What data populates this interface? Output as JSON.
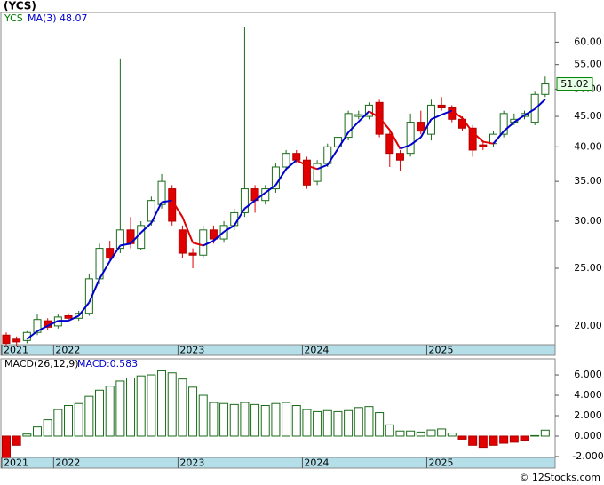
{
  "title": "(YCS)",
  "footer": "© 12Stocks.com",
  "chart_data": [
    {
      "type": "candlestick",
      "log": true,
      "categories": [
        "2021",
        null,
        null,
        null,
        null,
        "2022",
        null,
        null,
        null,
        null,
        null,
        null,
        null,
        null,
        null,
        null,
        null,
        "2023",
        null,
        null,
        null,
        null,
        null,
        null,
        null,
        null,
        null,
        null,
        null,
        "2024",
        null,
        null,
        null,
        null,
        null,
        null,
        null,
        null,
        null,
        null,
        null,
        "2025",
        null,
        null,
        null,
        null,
        null,
        null,
        null,
        null,
        null,
        null,
        null
      ],
      "series": [
        {
          "name": "YCS",
          "color": "#008000",
          "up_color": "#1a6b1a",
          "down_color": "#e00000",
          "open": [
            19.3,
            19.0,
            18.9,
            19.5,
            20.4,
            20.0,
            20.8,
            20.6,
            21.0,
            24.0,
            27.0,
            27.0,
            29.0,
            27.0,
            30.0,
            32.0,
            34.0,
            29.0,
            26.5,
            26.3,
            29.0,
            28.0,
            29.5,
            31.0,
            34.0,
            32.5,
            34.0,
            37.0,
            39.0,
            38.0,
            35.0,
            37.5,
            40.0,
            41.5,
            45.0,
            45.0,
            47.5,
            42.0,
            39.0,
            39.0,
            44.0,
            42.0,
            47.0,
            46.5,
            44.5,
            43.0,
            40.3,
            40.5,
            42.0,
            44.0,
            45.0,
            44.0,
            49.0
          ],
          "high": [
            19.5,
            19.2,
            19.6,
            20.9,
            20.6,
            20.9,
            21.0,
            21.2,
            24.5,
            27.5,
            27.8,
            56.3,
            30.5,
            30.0,
            33.0,
            36.0,
            34.5,
            29.5,
            27.0,
            29.5,
            29.5,
            30.0,
            31.5,
            63.7,
            34.5,
            34.5,
            37.5,
            39.5,
            39.5,
            38.5,
            38.0,
            40.5,
            42.0,
            46.0,
            46.0,
            47.5,
            48.0,
            42.5,
            39.5,
            45.5,
            46.0,
            48.0,
            48.5,
            47.0,
            45.0,
            43.5,
            41.0,
            42.5,
            46.0,
            45.5,
            46.0,
            49.5,
            52.5
          ],
          "low": [
            18.5,
            18.5,
            18.7,
            19.3,
            19.7,
            19.8,
            20.4,
            20.4,
            20.8,
            23.5,
            25.8,
            26.5,
            27.0,
            26.8,
            29.5,
            31.5,
            29.5,
            26.0,
            25.0,
            26.0,
            27.5,
            27.6,
            29.0,
            30.5,
            31.0,
            32.0,
            33.5,
            36.5,
            37.5,
            34.0,
            34.5,
            37.0,
            39.5,
            41.0,
            44.5,
            44.5,
            41.5,
            37.0,
            36.5,
            38.5,
            42.0,
            41.0,
            46.0,
            44.0,
            42.5,
            38.5,
            39.5,
            40.0,
            41.5,
            43.5,
            44.5,
            43.5,
            48.5
          ],
          "close": [
            18.7,
            18.8,
            19.5,
            20.5,
            19.9,
            20.7,
            20.6,
            21.0,
            24.0,
            27.0,
            26.0,
            29.0,
            27.5,
            29.5,
            32.5,
            35.0,
            30.0,
            26.5,
            26.3,
            29.0,
            28.0,
            29.5,
            31.0,
            34.0,
            32.5,
            34.0,
            37.0,
            39.0,
            38.0,
            34.5,
            37.5,
            40.0,
            41.5,
            45.5,
            45.3,
            47.0,
            42.0,
            39.0,
            38.0,
            44.0,
            42.5,
            47.0,
            46.5,
            44.5,
            43.0,
            39.5,
            40.0,
            42.0,
            45.5,
            44.5,
            45.5,
            49.0,
            51.02
          ]
        }
      ],
      "ma": {
        "name": "MA(3)",
        "color": "#0000cc",
        "down_color": "#e00000",
        "values": [
          null,
          null,
          19.0,
          19.6,
          20.0,
          20.4,
          20.4,
          20.8,
          21.9,
          24.0,
          25.7,
          27.3,
          27.5,
          28.7,
          29.8,
          32.3,
          32.5,
          30.5,
          27.6,
          27.3,
          27.8,
          28.8,
          29.5,
          31.5,
          32.5,
          33.5,
          34.5,
          36.7,
          38.0,
          37.2,
          36.7,
          37.3,
          39.7,
          42.3,
          44.1,
          45.9,
          44.8,
          42.7,
          39.7,
          40.3,
          41.5,
          44.5,
          45.3,
          46.0,
          44.7,
          42.3,
          40.8,
          40.5,
          42.5,
          44.0,
          45.2,
          46.3,
          48.07
        ]
      },
      "ylim": [
        18.6,
        67.3
      ],
      "yticks": [
        {
          "value": 20,
          "label": "20.00"
        },
        {
          "value": 25,
          "label": "25.00"
        },
        {
          "value": 30,
          "label": "30.00"
        },
        {
          "value": 35,
          "label": "35.00"
        },
        {
          "value": 40,
          "label": "40.00"
        },
        {
          "value": 45,
          "label": "45.00"
        },
        {
          "value": 50,
          "label": "50.00"
        },
        {
          "value": 55,
          "label": "55.00"
        },
        {
          "value": 60,
          "label": "60.00"
        }
      ]
    },
    {
      "type": "bar",
      "title": "MACD(26,12,9)",
      "legend_value": "MACD:0.583",
      "categories": [
        "2021",
        null,
        null,
        null,
        null,
        "2022",
        null,
        null,
        null,
        null,
        null,
        null,
        null,
        null,
        null,
        null,
        null,
        "2023",
        null,
        null,
        null,
        null,
        null,
        null,
        null,
        null,
        null,
        null,
        null,
        "2024",
        null,
        null,
        null,
        null,
        null,
        null,
        null,
        null,
        null,
        null,
        null,
        "2025",
        null,
        null,
        null,
        null,
        null,
        null,
        null,
        null,
        null,
        null,
        null
      ],
      "values": [
        -2.1,
        -0.9,
        0.2,
        0.9,
        1.6,
        2.6,
        3.0,
        3.2,
        3.9,
        4.5,
        4.9,
        5.4,
        5.7,
        5.9,
        6.0,
        6.4,
        6.2,
        5.6,
        4.8,
        4.0,
        3.3,
        3.2,
        3.1,
        3.3,
        3.1,
        3.0,
        3.2,
        3.3,
        3.0,
        2.6,
        2.4,
        2.5,
        2.4,
        2.5,
        2.8,
        2.9,
        2.3,
        1.1,
        0.5,
        0.5,
        0.4,
        0.6,
        0.7,
        0.3,
        -0.3,
        -0.9,
        -1.1,
        -0.9,
        -0.7,
        -0.6,
        -0.4,
        0.05,
        0.583
      ],
      "up_color": "#1a6b1a",
      "down_color": "#e00000",
      "legend_color": "#0000cc",
      "ylim": [
        -2.09,
        7.57
      ],
      "yticks": [
        {
          "value": -2,
          "label": "-2.000"
        },
        {
          "value": 0,
          "label": "0.000"
        },
        {
          "value": 2,
          "label": "2.000"
        },
        {
          "value": 4,
          "label": "4.000"
        },
        {
          "value": 6,
          "label": "6.000"
        }
      ]
    }
  ]
}
